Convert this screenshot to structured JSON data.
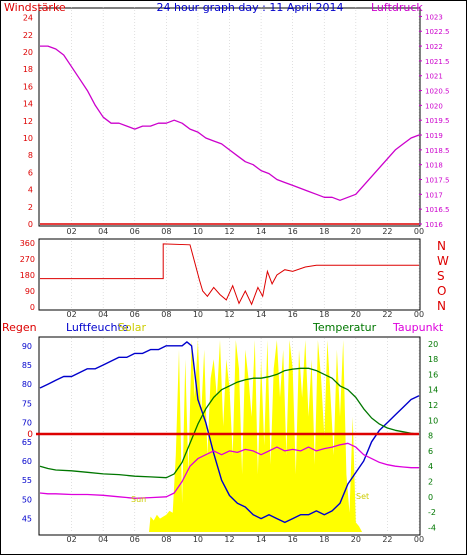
{
  "header": {
    "left_label": "Windstärke",
    "center_title": "24 hour graph day : 11 April 2014",
    "right_label": "Luftdruck"
  },
  "colors": {
    "wind": "#dd0000",
    "pressure": "#cc00cc",
    "title": "#0000cc",
    "humidity": "#0000cc",
    "solar": "#ffff00",
    "solar_label": "#cccc00",
    "temperature": "#007700",
    "dewpoint": "#dd00dd",
    "rain": "#dd0000",
    "grid": "#cccccc",
    "axis": "#000000"
  },
  "chart_data": [
    {
      "type": "line",
      "panel": "top",
      "x_ticks": [
        "02",
        "04",
        "06",
        "08",
        "10",
        "12",
        "14",
        "16",
        "18",
        "20",
        "22",
        "00"
      ],
      "left_axis": {
        "label": "Windstärke",
        "ticks": [
          0,
          2,
          4,
          6,
          8,
          10,
          12,
          14,
          16,
          18,
          20,
          22,
          24
        ],
        "ylim": [
          0,
          25
        ]
      },
      "right_axis": {
        "label": "Luftdruck",
        "ticks": [
          "1016",
          "1016.5",
          "1017",
          "1017.5",
          "1018",
          "1018.5",
          "1019",
          "1019.5",
          "1020",
          "1020.5",
          "1021",
          "1021.5",
          "1022",
          "1022.5",
          "1023"
        ],
        "ylim": [
          1016,
          1023.25
        ]
      },
      "series": [
        {
          "axis": "left",
          "x": [
            0,
            24
          ],
          "y": [
            0,
            0
          ]
        },
        {
          "axis": "right",
          "x": [
            0,
            0.5,
            1,
            1.5,
            2,
            2.5,
            3,
            3.5,
            4,
            4.5,
            5,
            5.5,
            6,
            6.5,
            7,
            7.5,
            8,
            8.5,
            9,
            9.5,
            10,
            10.5,
            11,
            11.5,
            12,
            12.5,
            13,
            13.5,
            14,
            14.5,
            15,
            15.5,
            16,
            16.5,
            17,
            17.5,
            18,
            18.5,
            19,
            19.5,
            20,
            20.5,
            21,
            21.5,
            22,
            22.5,
            23,
            23.5,
            24
          ],
          "y": [
            1022.0,
            1022.0,
            1021.9,
            1021.7,
            1021.3,
            1020.9,
            1020.5,
            1020.0,
            1019.6,
            1019.4,
            1019.4,
            1019.3,
            1019.2,
            1019.3,
            1019.3,
            1019.4,
            1019.4,
            1019.5,
            1019.4,
            1019.2,
            1019.1,
            1018.9,
            1018.8,
            1018.7,
            1018.5,
            1018.3,
            1018.1,
            1018.0,
            1017.8,
            1017.7,
            1017.5,
            1017.4,
            1017.3,
            1017.2,
            1017.1,
            1017.0,
            1016.9,
            1016.9,
            1016.8,
            1016.9,
            1017.0,
            1017.3,
            1017.6,
            1017.9,
            1018.2,
            1018.5,
            1018.7,
            1018.9,
            1019.0
          ]
        }
      ]
    },
    {
      "type": "line",
      "panel": "middle",
      "x_ticks": [
        "02",
        "04",
        "06",
        "08",
        "10",
        "12",
        "14",
        "16",
        "18",
        "20",
        "22",
        "00"
      ],
      "left_axis": {
        "ticks": [
          0,
          90,
          180,
          270,
          360
        ],
        "ylim": [
          0,
          360
        ]
      },
      "right_axis": {
        "ticks": [
          "N",
          "W",
          "S",
          "O",
          "N"
        ]
      },
      "series": [
        {
          "name": "",
          "x": [
            0,
            7.8,
            7.8,
            9.5,
            9.8,
            10.1,
            10.3,
            10.6,
            11,
            11.4,
            11.8,
            12.2,
            12.6,
            13,
            13.4,
            13.8,
            14.1,
            14.4,
            14.7,
            15,
            15.5,
            16,
            16.8,
            17.5,
            20,
            24
          ],
          "y": [
            160,
            160,
            355,
            350,
            250,
            150,
            90,
            60,
            110,
            70,
            40,
            120,
            20,
            90,
            15,
            110,
            60,
            200,
            130,
            180,
            210,
            200,
            225,
            235,
            235,
            235
          ]
        }
      ]
    },
    {
      "type": "line",
      "panel": "bottom",
      "x_ticks": [
        "02",
        "04",
        "06",
        "08",
        "10",
        "12",
        "14",
        "16",
        "18",
        "20",
        "22",
        "00"
      ],
      "labels": {
        "rain": "Regen",
        "humidity": "Luftfeuchte",
        "solar": "Solar",
        "temperature": "Temperatur",
        "dewpoint": "Taupunkt",
        "rain_value": "0",
        "sunrise": "Sun",
        "sunset": "Set"
      },
      "left_axis": {
        "ticks": [
          45,
          50,
          55,
          60,
          65,
          70,
          75,
          80,
          85,
          90
        ],
        "ylim": [
          41.5,
          91.5
        ]
      },
      "right_axis": {
        "ticks": [
          -4,
          -2,
          0,
          2,
          4,
          6,
          8,
          10,
          12,
          14,
          16,
          18,
          20
        ],
        "ylim": [
          -4.6,
          20.5
        ]
      },
      "series": [
        {
          "name": "Luftfeuchte",
          "axis": "left",
          "x": [
            0,
            0.5,
            1,
            1.5,
            2,
            2.5,
            3,
            3.5,
            4,
            4.5,
            5,
            5.5,
            6,
            6.5,
            7,
            7.5,
            8,
            8.5,
            9,
            9.3,
            9.6,
            10,
            10.5,
            11,
            11.5,
            12,
            12.5,
            13,
            13.5,
            14,
            14.5,
            15,
            15.5,
            16,
            16.5,
            17,
            17.5,
            18,
            18.5,
            19,
            19.5,
            20,
            20.5,
            21,
            21.5,
            22,
            22.5,
            23,
            23.5,
            24
          ],
          "y": [
            79,
            80,
            81,
            82,
            82,
            83,
            84,
            84,
            85,
            86,
            87,
            87,
            88,
            88,
            89,
            89,
            90,
            90,
            90,
            91,
            90,
            76,
            70,
            62,
            55,
            51,
            49,
            48,
            46,
            45,
            46,
            45,
            44,
            45,
            46,
            46,
            47,
            46,
            47,
            49,
            54,
            57,
            60,
            65,
            68,
            70,
            72,
            74,
            76,
            77
          ]
        },
        {
          "name": "Temperatur",
          "axis": "right",
          "x": [
            0,
            0.5,
            1,
            2,
            3,
            4,
            5,
            6,
            7,
            8,
            8.5,
            9,
            9.5,
            10,
            10.5,
            11,
            11.5,
            12,
            12.5,
            13,
            13.5,
            14,
            14.5,
            15,
            15.5,
            16,
            16.5,
            17,
            17.5,
            18,
            18.5,
            19,
            19.5,
            20,
            20.5,
            21,
            21.5,
            22,
            22.5,
            23,
            23.5,
            24
          ],
          "y": [
            4,
            3.7,
            3.5,
            3.4,
            3.2,
            3.0,
            2.9,
            2.7,
            2.6,
            2.5,
            3.0,
            4.5,
            7.0,
            9.5,
            11.5,
            13.0,
            14.0,
            14.5,
            15.0,
            15.3,
            15.5,
            15.5,
            15.7,
            16.0,
            16.5,
            16.7,
            16.8,
            16.8,
            16.5,
            16.0,
            15.5,
            14.5,
            14.0,
            13.0,
            11.5,
            10.3,
            9.5,
            9.0,
            8.7,
            8.5,
            8.3,
            8.2
          ]
        },
        {
          "name": "Taupunkt",
          "axis": "right",
          "x": [
            0,
            0.5,
            1,
            2,
            3,
            4,
            5,
            6,
            7,
            8,
            8.5,
            9,
            9.5,
            10,
            10.5,
            11,
            11.5,
            12,
            12.5,
            13,
            13.5,
            14,
            14.5,
            15,
            15.5,
            16,
            16.5,
            17,
            17.5,
            18,
            18.5,
            19,
            19.5,
            20,
            20.5,
            21,
            21.5,
            22,
            22.5,
            23,
            23.5,
            24
          ],
          "y": [
            0.5,
            0.4,
            0.4,
            0.3,
            0.3,
            0.2,
            0.0,
            -0.2,
            -0.1,
            0.0,
            0.5,
            2.0,
            4.0,
            5.0,
            5.5,
            6.0,
            5.5,
            6.0,
            5.8,
            6.2,
            6.0,
            5.5,
            6.0,
            6.5,
            6.0,
            6.2,
            6.0,
            6.5,
            6.0,
            6.3,
            6.5,
            6.8,
            7.0,
            6.5,
            5.5,
            5.0,
            4.5,
            4.2,
            4.0,
            3.9,
            3.8,
            3.8
          ]
        },
        {
          "name": "Regen",
          "x": [
            0,
            24
          ],
          "y": [
            0,
            0
          ]
        },
        {
          "name": "Solar",
          "type": "area",
          "x": [
            0,
            6.9,
            7.0,
            7.2,
            7.4,
            7.6,
            7.8,
            8.0,
            8.2,
            8.4,
            8.6,
            8.8,
            9.0,
            9.2,
            9.4,
            9.6,
            9.8,
            10.0,
            10.2,
            10.4,
            10.6,
            10.8,
            11.0,
            11.2,
            11.4,
            11.6,
            11.8,
            12.0,
            12.2,
            12.4,
            12.6,
            12.8,
            13.0,
            13.2,
            13.4,
            13.6,
            13.8,
            14.0,
            14.2,
            14.4,
            14.6,
            14.8,
            15.0,
            15.2,
            15.4,
            15.6,
            15.8,
            16.0,
            16.2,
            16.4,
            16.6,
            16.8,
            17.0,
            17.2,
            17.4,
            17.6,
            17.8,
            18.0,
            18.2,
            18.4,
            18.6,
            18.8,
            19.0,
            19.2,
            19.4,
            19.6,
            19.8,
            20.0,
            20.2,
            20.4,
            24
          ],
          "y": [
            0,
            0,
            8,
            6,
            9,
            7,
            8,
            9,
            11,
            10,
            40,
            95,
            15,
            90,
            30,
            100,
            70,
            100,
            60,
            95,
            40,
            80,
            90,
            70,
            100,
            55,
            90,
            75,
            40,
            100,
            85,
            30,
            95,
            80,
            60,
            100,
            30,
            90,
            45,
            100,
            35,
            85,
            100,
            70,
            95,
            40,
            100,
            85,
            30,
            95,
            70,
            100,
            60,
            90,
            35,
            100,
            80,
            50,
            100,
            70,
            40,
            95,
            60,
            100,
            30,
            10,
            60,
            5,
            3,
            0,
            0
          ]
        }
      ]
    }
  ]
}
